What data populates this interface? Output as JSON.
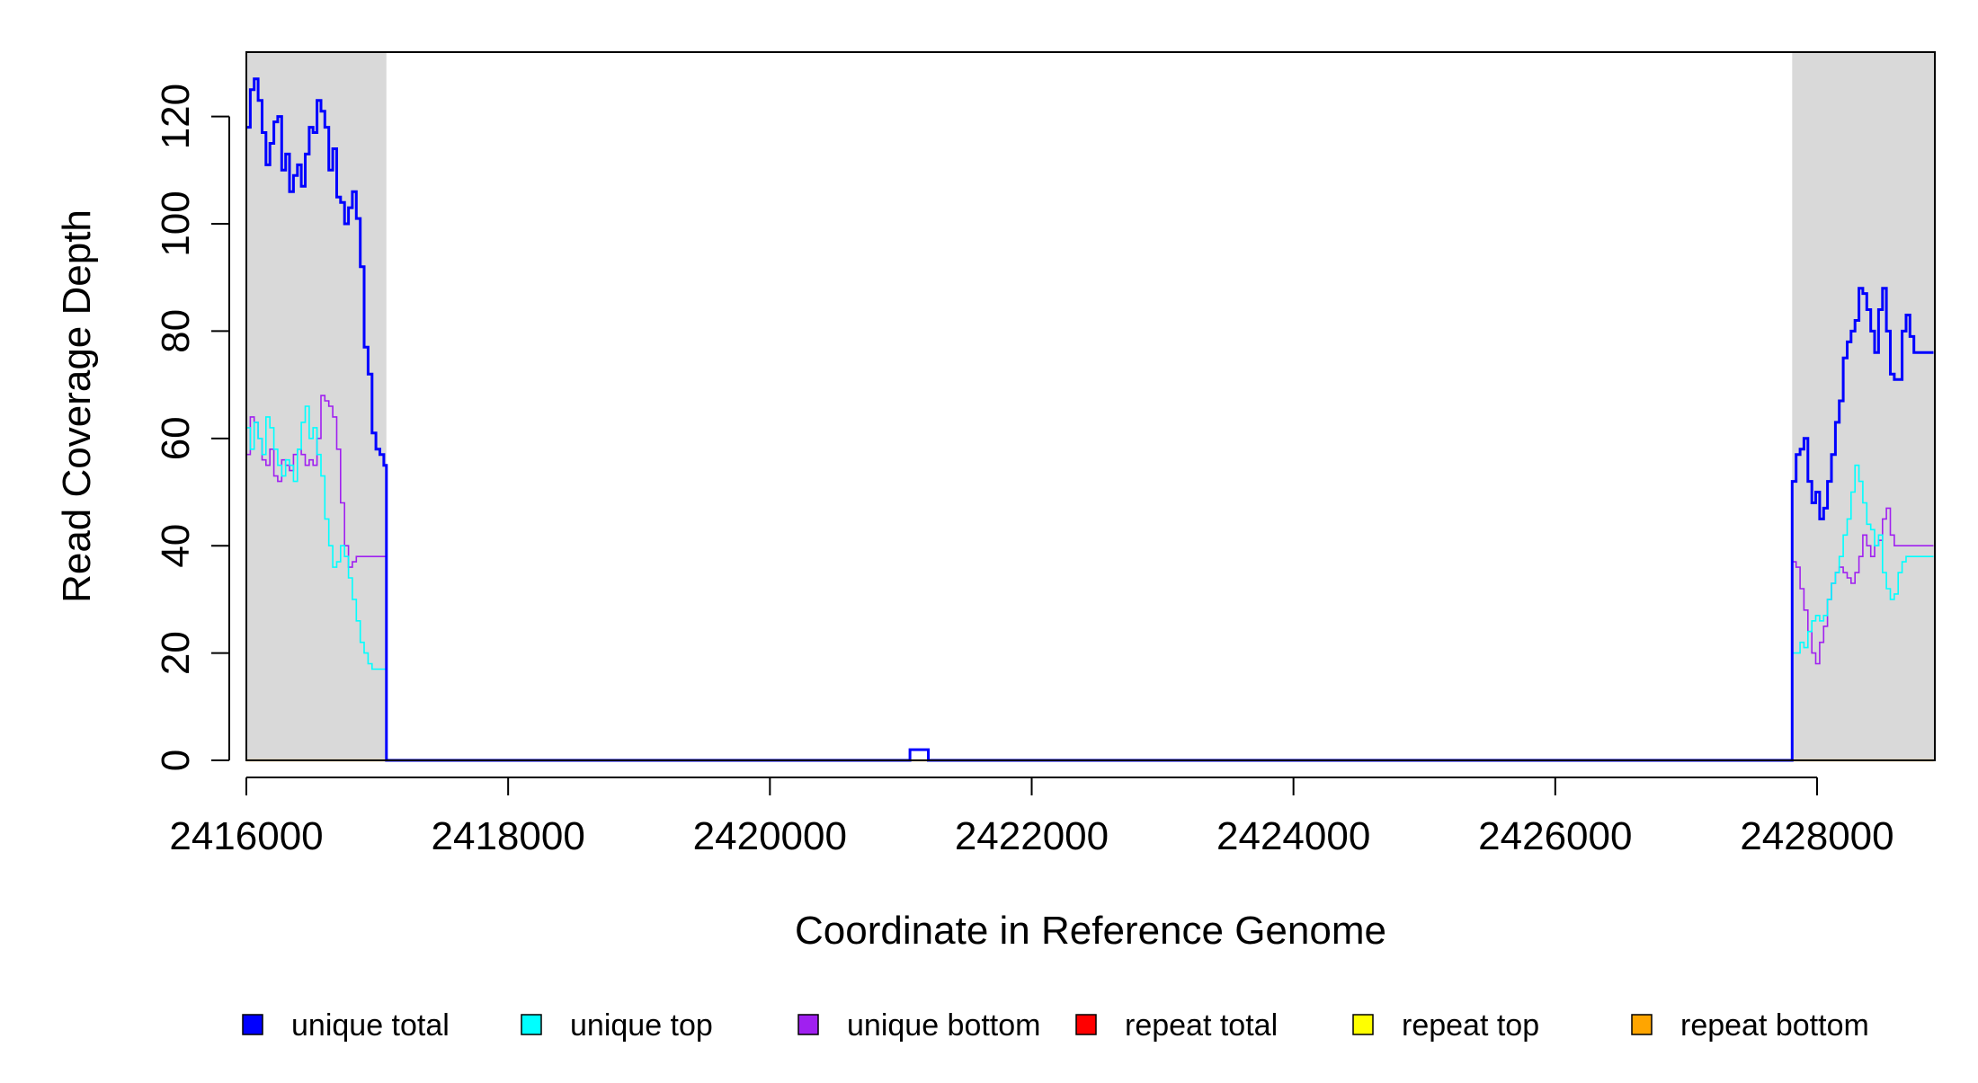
{
  "chart_data": {
    "type": "line",
    "title": "",
    "xlabel": "Coordinate in Reference Genome",
    "ylabel": "Read Coverage Depth",
    "xlim": [
      2416000,
      2428900
    ],
    "ylim": [
      0,
      132
    ],
    "x_ticks": [
      2416000,
      2418000,
      2420000,
      2422000,
      2424000,
      2426000,
      2428000
    ],
    "y_ticks": [
      0,
      20,
      40,
      60,
      80,
      100,
      120
    ],
    "grid": false,
    "legend_position": "bottom",
    "shaded_regions": [
      {
        "x_start": 2416000,
        "x_end": 2417070,
        "color": "#d9d9d9"
      },
      {
        "x_start": 2427810,
        "x_end": 2428900,
        "color": "#d9d9d9"
      }
    ],
    "legend": [
      {
        "label": "unique total",
        "color": "#0000ff"
      },
      {
        "label": "unique top",
        "color": "#00ffff"
      },
      {
        "label": "unique bottom",
        "color": "#a020f0"
      },
      {
        "label": "repeat total",
        "color": "#ff0000"
      },
      {
        "label": "repeat top",
        "color": "#ffff00"
      },
      {
        "label": "repeat bottom",
        "color": "#ffa500"
      }
    ],
    "series": [
      {
        "name": "unique total",
        "color": "#0000ff",
        "width": 3,
        "x": [
          2416000,
          2416030,
          2416060,
          2416090,
          2416120,
          2416150,
          2416180,
          2416210,
          2416240,
          2416270,
          2416300,
          2416330,
          2416360,
          2416390,
          2416420,
          2416450,
          2416480,
          2416510,
          2416540,
          2416570,
          2416600,
          2416630,
          2416660,
          2416690,
          2416720,
          2416750,
          2416780,
          2416810,
          2416840,
          2416870,
          2416900,
          2416930,
          2416960,
          2416990,
          2417020,
          2417050,
          2417070,
          2417100,
          2421060,
          2421070,
          2421200,
          2421210,
          2427790,
          2427810,
          2427840,
          2427870,
          2427900,
          2427930,
          2427960,
          2427990,
          2428020,
          2428050,
          2428080,
          2428110,
          2428140,
          2428170,
          2428200,
          2428230,
          2428260,
          2428290,
          2428320,
          2428350,
          2428380,
          2428410,
          2428440,
          2428470,
          2428500,
          2428530,
          2428560,
          2428590,
          2428620,
          2428650,
          2428680,
          2428710,
          2428740,
          2428770,
          2428800,
          2428830,
          2428860,
          2428890
        ],
        "y": [
          118,
          125,
          127,
          123,
          117,
          111,
          115,
          119,
          120,
          110,
          113,
          106,
          109,
          111,
          107,
          113,
          118,
          117,
          123,
          121,
          118,
          110,
          114,
          105,
          104,
          100,
          103,
          106,
          101,
          92,
          77,
          72,
          61,
          58,
          57,
          55,
          0,
          0,
          0,
          2,
          2,
          0,
          0,
          52,
          57,
          58,
          60,
          52,
          48,
          50,
          45,
          47,
          52,
          57,
          63,
          67,
          75,
          78,
          80,
          82,
          88,
          87,
          84,
          80,
          76,
          84,
          88,
          80,
          72,
          71,
          71,
          80,
          83,
          79,
          76,
          76,
          76,
          76,
          76,
          76
        ]
      },
      {
        "name": "unique top",
        "color": "#00ffff",
        "width": 1.6,
        "x": [
          2416000,
          2416030,
          2416060,
          2416090,
          2416120,
          2416150,
          2416180,
          2416210,
          2416240,
          2416270,
          2416300,
          2416330,
          2416360,
          2416390,
          2416420,
          2416450,
          2416480,
          2416510,
          2416540,
          2416570,
          2416600,
          2416630,
          2416660,
          2416690,
          2416720,
          2416750,
          2416780,
          2416810,
          2416840,
          2416870,
          2416900,
          2416930,
          2416960,
          2416990,
          2417020,
          2417050,
          2417070,
          2417100,
          2427790,
          2427810,
          2427840,
          2427870,
          2427900,
          2427930,
          2427960,
          2427990,
          2428020,
          2428050,
          2428080,
          2428110,
          2428140,
          2428170,
          2428200,
          2428230,
          2428260,
          2428290,
          2428320,
          2428350,
          2428380,
          2428410,
          2428440,
          2428470,
          2428500,
          2428530,
          2428560,
          2428590,
          2428620,
          2428650,
          2428680,
          2428710,
          2428740,
          2428770,
          2428800,
          2428830,
          2428860,
          2428890
        ],
        "y": [
          62,
          58,
          63,
          60,
          57,
          64,
          62,
          58,
          55,
          53,
          56,
          55,
          52,
          58,
          63,
          66,
          60,
          62,
          57,
          53,
          45,
          40,
          36,
          37,
          40,
          38,
          34,
          30,
          26,
          22,
          20,
          18,
          17,
          17,
          17,
          17,
          0,
          0,
          0,
          20,
          20,
          22,
          21,
          24,
          26,
          27,
          26,
          27,
          30,
          33,
          35,
          38,
          42,
          45,
          50,
          55,
          52,
          48,
          44,
          43,
          40,
          42,
          35,
          32,
          30,
          31,
          35,
          37,
          38,
          38,
          38,
          38,
          38,
          38,
          38,
          38
        ],
        "x_note": ""
      },
      {
        "name": "unique bottom",
        "color": "#a020f0",
        "width": 1.6,
        "x": [
          2416000,
          2416030,
          2416060,
          2416090,
          2416120,
          2416150,
          2416180,
          2416210,
          2416240,
          2416270,
          2416300,
          2416330,
          2416360,
          2416390,
          2416420,
          2416450,
          2416480,
          2416510,
          2416540,
          2416570,
          2416600,
          2416630,
          2416660,
          2416690,
          2416720,
          2416750,
          2416780,
          2416810,
          2416840,
          2416870,
          2416900,
          2416930,
          2416960,
          2416990,
          2417020,
          2417050,
          2417070,
          2417100,
          2427790,
          2427810,
          2427840,
          2427870,
          2427900,
          2427930,
          2427960,
          2427990,
          2428020,
          2428050,
          2428080,
          2428110,
          2428140,
          2428170,
          2428200,
          2428230,
          2428260,
          2428290,
          2428320,
          2428350,
          2428380,
          2428410,
          2428440,
          2428470,
          2428500,
          2428530,
          2428560,
          2428590,
          2428620,
          2428650,
          2428680,
          2428710,
          2428740,
          2428770,
          2428800,
          2428830,
          2428860,
          2428890
        ],
        "y": [
          57,
          64,
          63,
          60,
          56,
          55,
          58,
          53,
          52,
          56,
          55,
          54,
          57,
          58,
          57,
          55,
          56,
          55,
          60,
          68,
          67,
          66,
          64,
          58,
          48,
          40,
          36,
          37,
          38,
          38,
          38,
          38,
          38,
          38,
          38,
          38,
          0,
          0,
          0,
          37,
          36,
          32,
          28,
          24,
          20,
          18,
          22,
          25,
          30,
          33,
          35,
          36,
          35,
          34,
          33,
          35,
          38,
          42,
          40,
          38,
          40,
          41,
          45,
          47,
          42,
          40,
          40,
          40,
          40,
          40,
          40,
          40,
          40,
          40,
          40,
          40
        ]
      },
      {
        "name": "repeat total",
        "color": "#ff0000",
        "width": 1.6,
        "x": [
          2416000,
          2428890
        ],
        "y": [
          0,
          0
        ]
      },
      {
        "name": "repeat top",
        "color": "#ffff00",
        "width": 1.6,
        "x": [
          2416000,
          2428890
        ],
        "y": [
          0,
          0
        ]
      },
      {
        "name": "repeat bottom",
        "color": "#ffa500",
        "width": 2.2,
        "x": [
          2416000,
          2428890
        ],
        "y": [
          0,
          0
        ]
      }
    ]
  }
}
